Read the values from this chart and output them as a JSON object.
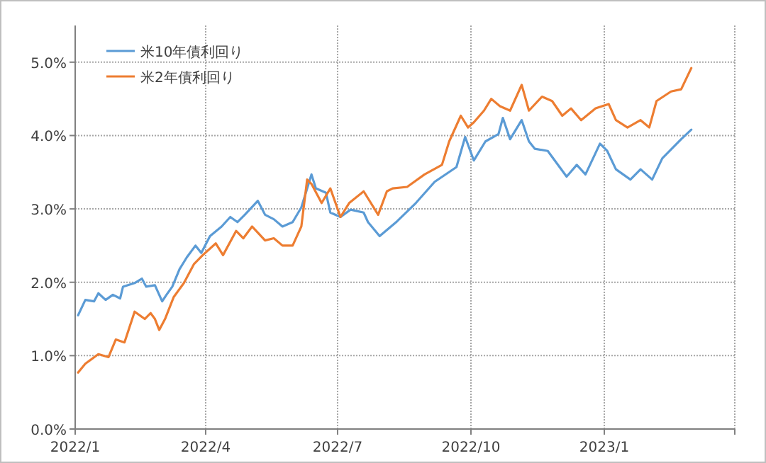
{
  "chart_data": {
    "type": "line",
    "xlim": [
      "2022-01-01",
      "2023-04-01"
    ],
    "xticks": [
      {
        "value": "2022-01-01",
        "label": "2022/1"
      },
      {
        "value": "2022-04-01",
        "label": "2022/4"
      },
      {
        "value": "2022-07-01",
        "label": "2022/7"
      },
      {
        "value": "2022-10-01",
        "label": "2022/10"
      },
      {
        "value": "2023-01-01",
        "label": "2023/1"
      },
      {
        "value": "2023-04-01",
        "label": null
      }
    ],
    "ylim": [
      0,
      5.5
    ],
    "yticks": [
      {
        "value": 0,
        "label": "0.0%"
      },
      {
        "value": 1,
        "label": "1.0%"
      },
      {
        "value": 2,
        "label": "2.0%"
      },
      {
        "value": 3,
        "label": "3.0%"
      },
      {
        "value": 4,
        "label": "4.0%"
      },
      {
        "value": 5,
        "label": "5.0%"
      }
    ],
    "grid": true,
    "legend": "top left",
    "line_style": "solid",
    "marker": "none",
    "series": [
      {
        "name": "米10年債利回り",
        "color": "#5b9bd5",
        "x": [
          "2022-01-03",
          "2022-01-08",
          "2022-01-14",
          "2022-01-17",
          "2022-01-22",
          "2022-01-27",
          "2022-02-01",
          "2022-02-03",
          "2022-02-11",
          "2022-02-16",
          "2022-02-19",
          "2022-02-25",
          "2022-03-02",
          "2022-03-05",
          "2022-03-09",
          "2022-03-14",
          "2022-03-19",
          "2022-03-25",
          "2022-03-29",
          "2022-04-04",
          "2022-04-12",
          "2022-04-18",
          "2022-04-23",
          "2022-04-28",
          "2022-05-07",
          "2022-05-12",
          "2022-05-18",
          "2022-05-24",
          "2022-05-31",
          "2022-06-06",
          "2022-06-13",
          "2022-06-16",
          "2022-06-23",
          "2022-06-26",
          "2022-07-03",
          "2022-07-10",
          "2022-07-19",
          "2022-07-22",
          "2022-07-30",
          "2022-08-11",
          "2022-08-24",
          "2022-09-06",
          "2022-09-21",
          "2022-09-27",
          "2022-10-03",
          "2022-10-11",
          "2022-10-20",
          "2022-10-23",
          "2022-10-28",
          "2022-11-05",
          "2022-11-10",
          "2022-11-14",
          "2022-11-23",
          "2022-12-06",
          "2022-12-13",
          "2022-12-19",
          "2022-12-29",
          "2023-01-03",
          "2023-01-09",
          "2023-01-19",
          "2023-01-26",
          "2023-02-03",
          "2023-02-10",
          "2023-02-23",
          "2023-03-02"
        ],
        "values": [
          1.55,
          1.76,
          1.74,
          1.85,
          1.76,
          1.83,
          1.78,
          1.94,
          1.99,
          2.05,
          1.94,
          1.96,
          1.74,
          1.83,
          1.94,
          2.18,
          2.34,
          2.5,
          2.4,
          2.63,
          2.76,
          2.89,
          2.82,
          2.92,
          3.11,
          2.92,
          2.86,
          2.76,
          2.82,
          3.02,
          3.47,
          3.28,
          3.22,
          2.95,
          2.89,
          2.99,
          2.95,
          2.82,
          2.63,
          2.83,
          3.08,
          3.37,
          3.57,
          3.98,
          3.66,
          3.92,
          4.02,
          4.24,
          3.95,
          4.21,
          3.92,
          3.82,
          3.79,
          3.44,
          3.6,
          3.47,
          3.89,
          3.79,
          3.54,
          3.4,
          3.54,
          3.4,
          3.69,
          3.95,
          4.08
        ]
      },
      {
        "name": "米2年債利回り",
        "color": "#ed7d31",
        "x": [
          "2022-01-03",
          "2022-01-08",
          "2022-01-17",
          "2022-01-24",
          "2022-01-29",
          "2022-02-04",
          "2022-02-11",
          "2022-02-18",
          "2022-02-22",
          "2022-02-25",
          "2022-02-28",
          "2022-03-04",
          "2022-03-10",
          "2022-03-17",
          "2022-03-24",
          "2022-03-30",
          "2022-04-08",
          "2022-04-13",
          "2022-04-22",
          "2022-04-27",
          "2022-05-03",
          "2022-05-12",
          "2022-05-18",
          "2022-05-24",
          "2022-05-31",
          "2022-06-06",
          "2022-06-10",
          "2022-06-13",
          "2022-06-20",
          "2022-06-26",
          "2022-07-03",
          "2022-07-09",
          "2022-07-19",
          "2022-07-29",
          "2022-08-04",
          "2022-08-08",
          "2022-08-18",
          "2022-08-30",
          "2022-09-11",
          "2022-09-16",
          "2022-09-24",
          "2022-09-29",
          "2022-10-03",
          "2022-10-10",
          "2022-10-15",
          "2022-10-21",
          "2022-10-28",
          "2022-11-05",
          "2022-11-10",
          "2022-11-19",
          "2022-11-26",
          "2022-12-03",
          "2022-12-09",
          "2022-12-16",
          "2022-12-26",
          "2023-01-04",
          "2023-01-09",
          "2023-01-17",
          "2023-01-26",
          "2023-02-01",
          "2023-02-06",
          "2023-02-16",
          "2023-02-23",
          "2023-03-02"
        ],
        "values": [
          0.77,
          0.89,
          1.02,
          0.98,
          1.22,
          1.18,
          1.6,
          1.5,
          1.58,
          1.5,
          1.35,
          1.5,
          1.8,
          1.99,
          2.25,
          2.37,
          2.53,
          2.37,
          2.7,
          2.6,
          2.76,
          2.57,
          2.6,
          2.5,
          2.5,
          2.76,
          3.4,
          3.34,
          3.08,
          3.28,
          2.89,
          3.08,
          3.24,
          2.92,
          3.24,
          3.28,
          3.3,
          3.47,
          3.6,
          3.92,
          4.27,
          4.11,
          4.18,
          4.34,
          4.5,
          4.4,
          4.34,
          4.69,
          4.34,
          4.53,
          4.47,
          4.27,
          4.37,
          4.21,
          4.37,
          4.43,
          4.21,
          4.11,
          4.21,
          4.11,
          4.47,
          4.6,
          4.63,
          4.92
        ]
      }
    ]
  }
}
